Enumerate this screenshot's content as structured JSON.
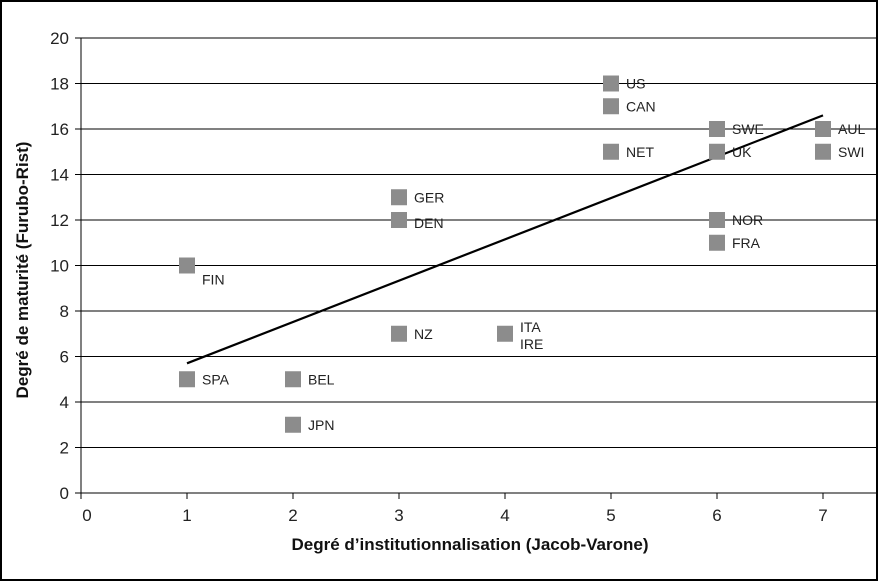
{
  "chart_data": {
    "type": "scatter",
    "title": "",
    "xlabel": "Degré d’institutionnalisation (Jacob-Varone)",
    "ylabel": "Degré de maturité (Furubo-Rist)",
    "xlim": [
      0,
      7.5
    ],
    "ylim": [
      0,
      20
    ],
    "xticks": [
      0,
      1,
      2,
      3,
      4,
      5,
      6,
      7
    ],
    "yticks": [
      0,
      2,
      4,
      6,
      8,
      10,
      12,
      14,
      16,
      18,
      20
    ],
    "grid": "horizontal",
    "marker_color": "#8c8c8c",
    "line_color": "#000000",
    "points": [
      {
        "label": "US",
        "x": 5,
        "y": 18
      },
      {
        "label": "CAN",
        "x": 5,
        "y": 17
      },
      {
        "label": "NET",
        "x": 5,
        "y": 15
      },
      {
        "label": "SWE",
        "x": 6,
        "y": 16
      },
      {
        "label": "UK",
        "x": 6,
        "y": 15
      },
      {
        "label": "AUL",
        "x": 7,
        "y": 16
      },
      {
        "label": "SWI",
        "x": 7,
        "y": 15
      },
      {
        "label": "GER",
        "x": 3,
        "y": 13
      },
      {
        "label": "DEN",
        "x": 3,
        "y": 12
      },
      {
        "label": "NOR",
        "x": 6,
        "y": 12
      },
      {
        "label": "FRA",
        "x": 6,
        "y": 11
      },
      {
        "label": "FIN",
        "x": 1,
        "y": 10
      },
      {
        "label": "NZ",
        "x": 3,
        "y": 7
      },
      {
        "label": "ITA\nIRE",
        "x": 4,
        "y": 7
      },
      {
        "label": "SPA",
        "x": 1,
        "y": 5
      },
      {
        "label": "BEL",
        "x": 2,
        "y": 5
      },
      {
        "label": "JPN",
        "x": 2,
        "y": 3
      }
    ],
    "trendline": {
      "x": [
        1,
        7
      ],
      "y": [
        5.7,
        16.6
      ]
    }
  }
}
